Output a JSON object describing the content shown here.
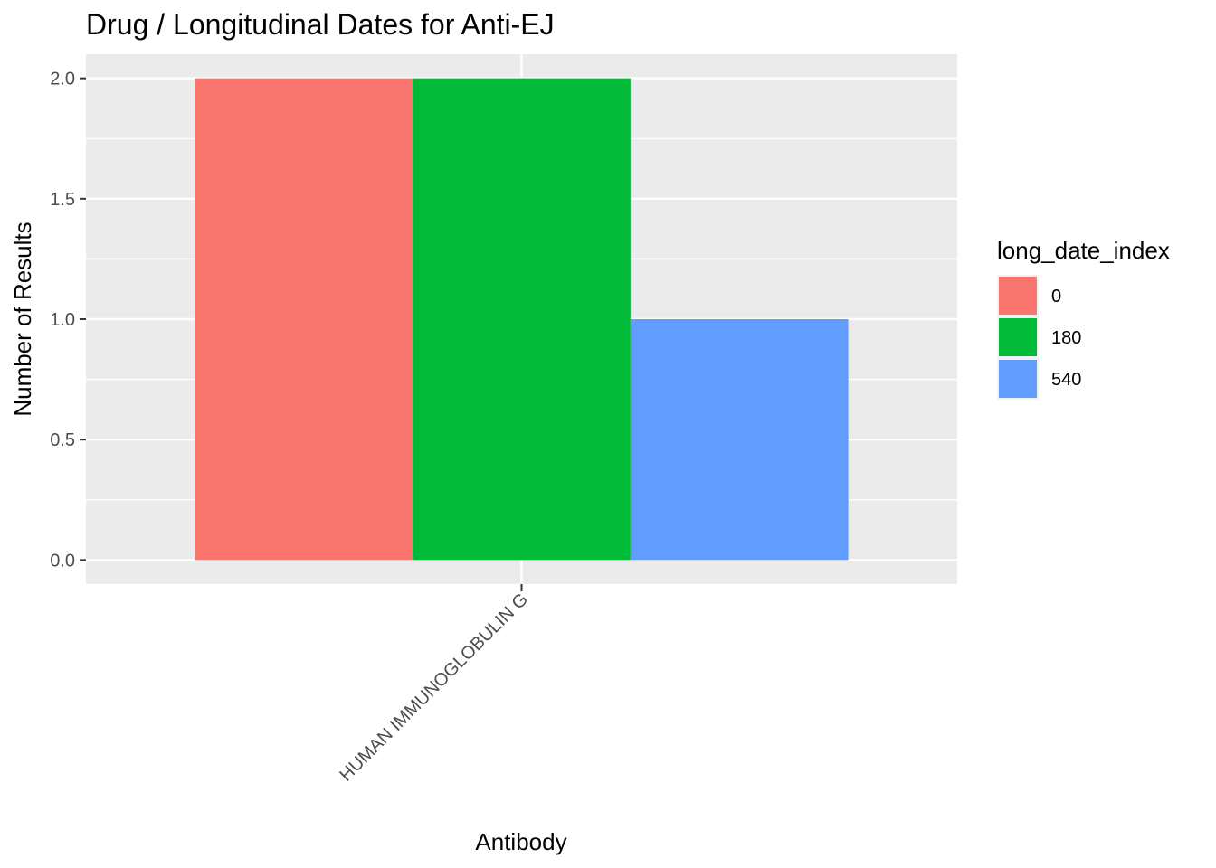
{
  "chart_data": {
    "type": "bar",
    "title": "Drug / Longitudinal Dates for Anti-EJ",
    "xlabel": "Antibody",
    "ylabel": "Number of Results",
    "categories": [
      "HUMAN IMMUNOGLOBULIN G"
    ],
    "series": [
      {
        "name": "0",
        "values": [
          2
        ],
        "color": "#F8766D"
      },
      {
        "name": "180",
        "values": [
          2
        ],
        "color": "#00BA38"
      },
      {
        "name": "540",
        "values": [
          1
        ],
        "color": "#619CFF"
      }
    ],
    "ylim": [
      0,
      2.1
    ],
    "yticks": [
      "0.0",
      "0.5",
      "1.0",
      "1.5",
      "2.0"
    ],
    "grid": true,
    "legend": {
      "title": "long_date_index",
      "placement": "right"
    },
    "panel_color": "#EBEBEB"
  }
}
